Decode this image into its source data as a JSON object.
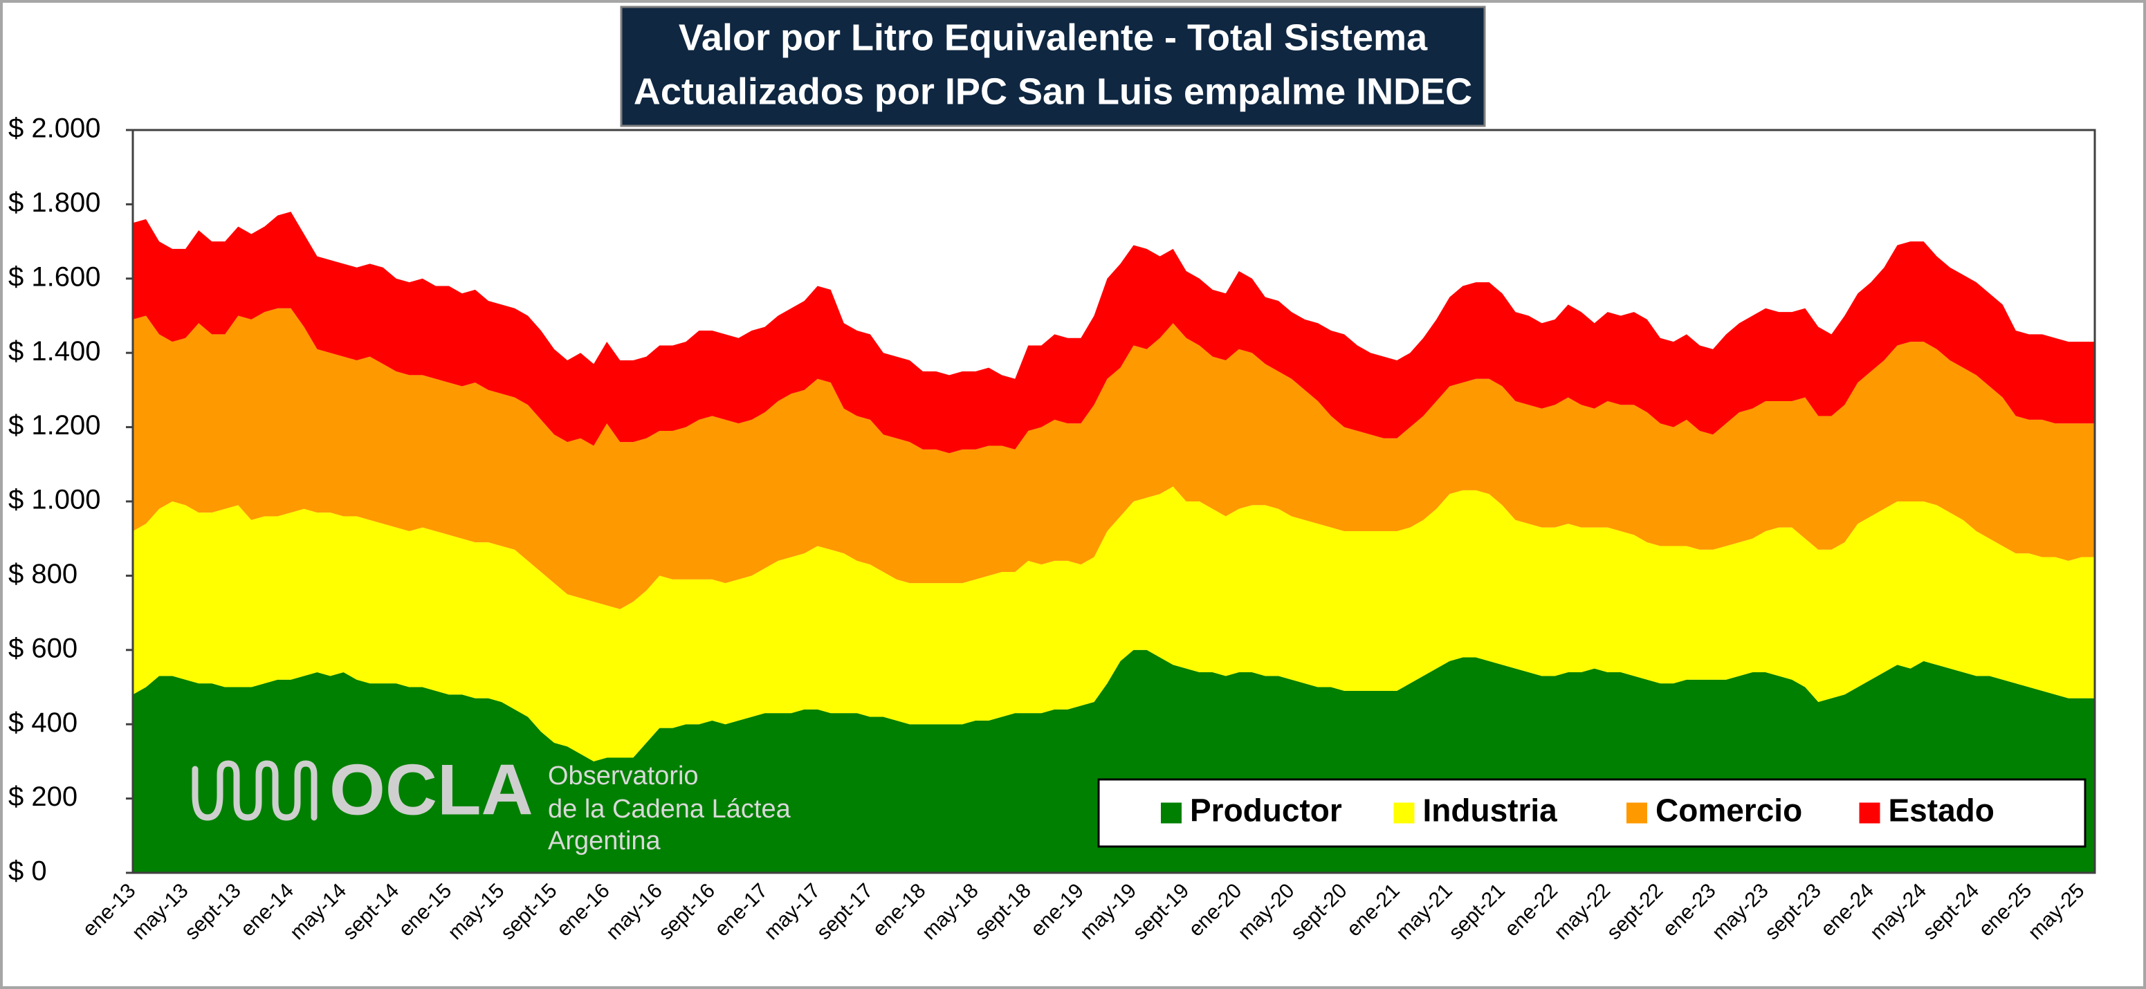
{
  "chart_data": {
    "type": "stacked-area",
    "title": "Valor por Litro Equivalente - Total Sistema",
    "subtitle": "Actualizados por IPC San Luis empalme INDEC",
    "legend": "lower right",
    "grid": false,
    "ylim": [
      0,
      2000
    ],
    "yticks": [
      {
        "value": 0,
        "label": "$ 0"
      },
      {
        "value": 200,
        "label": "$ 200"
      },
      {
        "value": 400,
        "label": "$ 400"
      },
      {
        "value": 600,
        "label": "$ 600"
      },
      {
        "value": 800,
        "label": "$ 800"
      },
      {
        "value": 1000,
        "label": "$ 1.000"
      },
      {
        "value": 1200,
        "label": "$ 1.200"
      },
      {
        "value": 1400,
        "label": "$ 1.400"
      },
      {
        "value": 1600,
        "label": "$ 1.600"
      },
      {
        "value": 1800,
        "label": "$ 1.800"
      },
      {
        "value": 2000,
        "label": "$ 2.000"
      }
    ],
    "categories": [
      "ene-13",
      null,
      null,
      null,
      "may-13",
      null,
      null,
      null,
      "sept-13",
      null,
      null,
      null,
      "ene-14",
      null,
      null,
      null,
      "may-14",
      null,
      null,
      null,
      "sept-14",
      null,
      null,
      null,
      "ene-15",
      null,
      null,
      null,
      "may-15",
      null,
      null,
      null,
      "sept-15",
      null,
      null,
      null,
      "ene-16",
      null,
      null,
      null,
      "may-16",
      null,
      null,
      null,
      "sept-16",
      null,
      null,
      null,
      "ene-17",
      null,
      null,
      null,
      "may-17",
      null,
      null,
      null,
      "sept-17",
      null,
      null,
      null,
      "ene-18",
      null,
      null,
      null,
      "may-18",
      null,
      null,
      null,
      "sept-18",
      null,
      null,
      null,
      "ene-19",
      null,
      null,
      null,
      "may-19",
      null,
      null,
      null,
      "sept-19",
      null,
      null,
      null,
      "ene-20",
      null,
      null,
      null,
      "may-20",
      null,
      null,
      null,
      "sept-20",
      null,
      null,
      null,
      "ene-21",
      null,
      null,
      null,
      "may-21",
      null,
      null,
      null,
      "sept-21",
      null,
      null,
      null,
      "ene-22",
      null,
      null,
      null,
      "may-22",
      null,
      null,
      null,
      "sept-22",
      null,
      null,
      null,
      "ene-23",
      null,
      null,
      null,
      "may-23",
      null,
      null,
      null,
      "sept-23",
      null,
      null,
      null,
      "ene-24",
      null,
      null,
      null,
      "may-24",
      null,
      null,
      null,
      "sept-24",
      null,
      null,
      null,
      "ene-25",
      null,
      null,
      null,
      "may-25",
      null
    ],
    "series": [
      {
        "name": "Productor",
        "color": "#008000",
        "values": [
          480,
          500,
          530,
          530,
          520,
          510,
          510,
          500,
          500,
          500,
          510,
          520,
          520,
          530,
          540,
          530,
          540,
          520,
          510,
          510,
          510,
          500,
          500,
          490,
          480,
          480,
          470,
          470,
          460,
          440,
          420,
          380,
          350,
          340,
          320,
          300,
          310,
          310,
          310,
          350,
          390,
          390,
          400,
          400,
          410,
          400,
          410,
          420,
          430,
          430,
          430,
          440,
          440,
          430,
          430,
          430,
          420,
          420,
          410,
          400,
          400,
          400,
          400,
          400,
          410,
          410,
          420,
          430,
          430,
          430,
          440,
          440,
          450,
          460,
          510,
          570,
          600,
          600,
          580,
          560,
          550,
          540,
          540,
          530,
          540,
          540,
          530,
          530,
          520,
          510,
          500,
          500,
          490,
          490,
          490,
          490,
          490,
          510,
          530,
          550,
          570,
          580,
          580,
          570,
          560,
          550,
          540,
          530,
          530,
          540,
          540,
          550,
          540,
          540,
          530,
          520,
          510,
          510,
          520,
          520,
          520,
          520,
          530,
          540,
          540,
          530,
          520,
          500,
          460,
          470,
          480,
          500,
          520,
          540,
          560,
          550,
          570,
          560,
          550,
          540,
          530,
          530,
          520,
          510,
          500,
          490,
          480,
          470,
          470,
          470
        ]
      },
      {
        "name": "Industria",
        "color": "#ffff00",
        "values": [
          440,
          440,
          450,
          470,
          470,
          460,
          460,
          480,
          490,
          450,
          450,
          440,
          450,
          450,
          430,
          440,
          420,
          440,
          440,
          430,
          420,
          420,
          430,
          430,
          430,
          420,
          420,
          420,
          420,
          430,
          420,
          430,
          430,
          410,
          420,
          430,
          410,
          400,
          420,
          410,
          410,
          400,
          390,
          390,
          380,
          380,
          380,
          380,
          390,
          410,
          420,
          420,
          440,
          440,
          430,
          410,
          410,
          390,
          380,
          380,
          380,
          380,
          380,
          380,
          380,
          390,
          390,
          380,
          410,
          400,
          400,
          400,
          380,
          390,
          410,
          390,
          400,
          410,
          440,
          480,
          450,
          460,
          440,
          430,
          440,
          450,
          460,
          450,
          440,
          440,
          440,
          430,
          430,
          430,
          430,
          430,
          430,
          420,
          420,
          430,
          450,
          450,
          450,
          450,
          430,
          400,
          400,
          400,
          400,
          400,
          390,
          380,
          390,
          380,
          380,
          370,
          370,
          370,
          360,
          350,
          350,
          360,
          360,
          360,
          380,
          400,
          410,
          400,
          410,
          400,
          410,
          440,
          440,
          440,
          440,
          450,
          430,
          430,
          420,
          410,
          390,
          370,
          360,
          350,
          360,
          360,
          370,
          370,
          380,
          380
        ]
      },
      {
        "name": "Comercio",
        "color": "#ff9900",
        "values": [
          570,
          560,
          470,
          430,
          450,
          510,
          480,
          470,
          510,
          540,
          550,
          560,
          550,
          490,
          440,
          430,
          430,
          420,
          440,
          430,
          420,
          420,
          410,
          410,
          410,
          410,
          430,
          410,
          410,
          410,
          420,
          410,
          400,
          410,
          430,
          420,
          490,
          450,
          430,
          410,
          390,
          400,
          410,
          430,
          440,
          440,
          420,
          420,
          420,
          430,
          440,
          440,
          450,
          450,
          390,
          390,
          390,
          370,
          380,
          380,
          360,
          360,
          350,
          360,
          350,
          350,
          340,
          330,
          350,
          370,
          380,
          370,
          380,
          410,
          410,
          400,
          420,
          400,
          420,
          440,
          440,
          420,
          410,
          420,
          430,
          410,
          380,
          370,
          370,
          350,
          330,
          300,
          280,
          270,
          260,
          250,
          250,
          270,
          280,
          290,
          290,
          290,
          300,
          310,
          320,
          320,
          320,
          320,
          330,
          340,
          330,
          320,
          340,
          340,
          350,
          350,
          330,
          320,
          340,
          320,
          310,
          330,
          350,
          350,
          350,
          340,
          340,
          380,
          360,
          360,
          370,
          380,
          390,
          400,
          420,
          430,
          430,
          420,
          410,
          410,
          420,
          410,
          400,
          370,
          360,
          370,
          360,
          370,
          360,
          360
        ]
      },
      {
        "name": "Estado",
        "color": "#ff0000",
        "values": [
          260,
          260,
          250,
          250,
          240,
          250,
          250,
          250,
          240,
          230,
          230,
          250,
          260,
          250,
          250,
          250,
          250,
          250,
          250,
          260,
          250,
          250,
          260,
          250,
          260,
          250,
          250,
          240,
          240,
          240,
          240,
          240,
          230,
          220,
          230,
          220,
          220,
          220,
          220,
          220,
          230,
          230,
          230,
          240,
          230,
          230,
          230,
          240,
          230,
          230,
          230,
          240,
          250,
          250,
          230,
          230,
          230,
          220,
          220,
          220,
          210,
          210,
          210,
          210,
          210,
          210,
          190,
          190,
          230,
          220,
          230,
          230,
          230,
          240,
          270,
          280,
          270,
          270,
          220,
          200,
          180,
          180,
          180,
          180,
          210,
          200,
          180,
          190,
          180,
          190,
          210,
          230,
          250,
          230,
          220,
          220,
          210,
          200,
          210,
          220,
          240,
          260,
          260,
          260,
          250,
          240,
          240,
          230,
          230,
          250,
          250,
          230,
          240,
          240,
          250,
          250,
          230,
          230,
          230,
          230,
          230,
          240,
          240,
          250,
          250,
          240,
          240,
          240,
          240,
          220,
          240,
          240,
          240,
          250,
          270,
          270,
          270,
          250,
          250,
          250,
          250,
          250,
          250,
          230,
          230,
          230,
          230,
          220,
          220,
          220
        ]
      }
    ],
    "logo": {
      "mark": "OCLA",
      "line1": "Observatorio",
      "line2": "de la Cadena Láctea",
      "line3": "Argentina"
    }
  }
}
